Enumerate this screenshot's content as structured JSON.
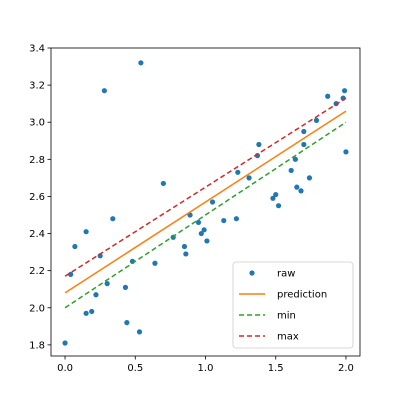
{
  "chart_data": {
    "type": "scatter",
    "xlim": [
      -0.1,
      2.1
    ],
    "ylim": [
      1.74,
      3.4
    ],
    "x_ticks": [
      0.0,
      0.5,
      1.0,
      1.5,
      2.0
    ],
    "x_tick_labels": [
      "0.0",
      "0.5",
      "1.0",
      "1.5",
      "2.0"
    ],
    "y_ticks": [
      1.8,
      2.0,
      2.2,
      2.4,
      2.6,
      2.8,
      3.0,
      3.2,
      3.4
    ],
    "y_tick_labels": [
      "1.8",
      "2.0",
      "2.2",
      "2.4",
      "2.6",
      "2.8",
      "3.0",
      "3.2",
      "3.4"
    ],
    "grid": false,
    "legend_position": "lower-right",
    "series": [
      {
        "name": "raw",
        "kind": "scatter",
        "color": "#1f77b4",
        "points": [
          [
            0.0,
            1.81
          ],
          [
            0.04,
            2.18
          ],
          [
            0.07,
            2.33
          ],
          [
            0.15,
            2.41
          ],
          [
            0.15,
            1.97
          ],
          [
            0.19,
            1.98
          ],
          [
            0.22,
            2.07
          ],
          [
            0.25,
            2.28
          ],
          [
            0.28,
            3.17
          ],
          [
            0.3,
            2.13
          ],
          [
            0.34,
            2.48
          ],
          [
            0.43,
            2.11
          ],
          [
            0.44,
            1.92
          ],
          [
            0.48,
            2.25
          ],
          [
            0.53,
            1.87
          ],
          [
            0.54,
            3.32
          ],
          [
            0.64,
            2.24
          ],
          [
            0.7,
            2.67
          ],
          [
            0.77,
            2.38
          ],
          [
            0.85,
            2.33
          ],
          [
            0.86,
            2.29
          ],
          [
            0.89,
            2.5
          ],
          [
            0.95,
            2.46
          ],
          [
            0.97,
            2.4
          ],
          [
            0.99,
            2.42
          ],
          [
            1.01,
            2.36
          ],
          [
            1.05,
            2.57
          ],
          [
            1.13,
            2.47
          ],
          [
            1.22,
            2.48
          ],
          [
            1.23,
            2.73
          ],
          [
            1.31,
            2.7
          ],
          [
            1.37,
            2.82
          ],
          [
            1.38,
            2.88
          ],
          [
            1.48,
            2.59
          ],
          [
            1.5,
            2.61
          ],
          [
            1.52,
            2.55
          ],
          [
            1.61,
            2.74
          ],
          [
            1.64,
            2.8
          ],
          [
            1.65,
            2.65
          ],
          [
            1.68,
            2.63
          ],
          [
            1.7,
            2.95
          ],
          [
            1.7,
            2.88
          ],
          [
            1.74,
            2.7
          ],
          [
            1.79,
            3.01
          ],
          [
            1.87,
            3.14
          ],
          [
            1.93,
            3.1
          ],
          [
            1.98,
            3.13
          ],
          [
            1.99,
            3.17
          ],
          [
            2.0,
            2.84
          ]
        ]
      },
      {
        "name": "prediction",
        "kind": "line",
        "color": "#ff7f0e",
        "dash": "",
        "points": [
          [
            0.0,
            2.08
          ],
          [
            2.0,
            3.06
          ]
        ]
      },
      {
        "name": "min",
        "kind": "line",
        "color": "#2ca02c",
        "dash": "5,3",
        "points": [
          [
            0.0,
            2.0
          ],
          [
            2.0,
            3.0
          ]
        ]
      },
      {
        "name": "max",
        "kind": "line",
        "color": "#d62728",
        "dash": "5,3",
        "points": [
          [
            0.0,
            2.17
          ],
          [
            2.0,
            3.13
          ]
        ]
      }
    ]
  }
}
